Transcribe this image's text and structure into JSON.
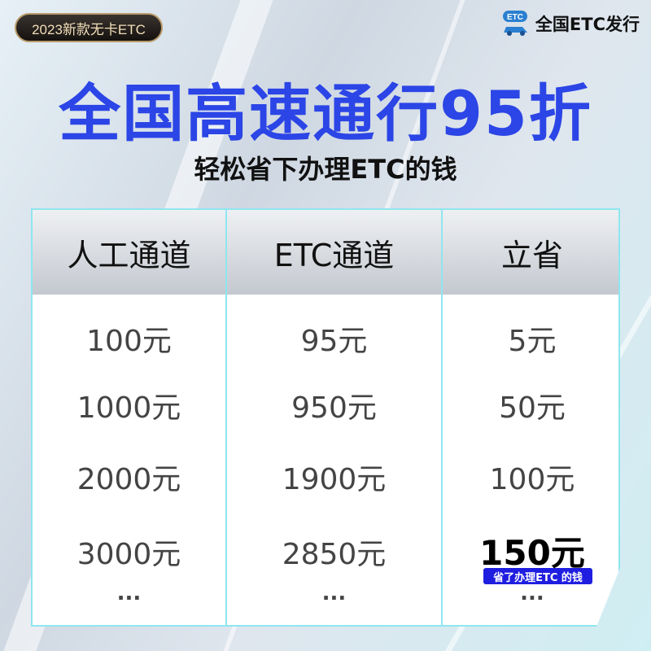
{
  "badge": "2023新款无卡ETC",
  "logo": {
    "text": "全国ETC发行",
    "mark": "ETC"
  },
  "title": "全国高速通行95折",
  "subtitle": "轻松省下办理ETC的钱",
  "colors": {
    "title": "#2b45e6",
    "note_bg": "#1f1ee0",
    "border": "#8fe6ef"
  },
  "table": {
    "headers": [
      "人工通道",
      "ETC通道",
      "立省"
    ],
    "columns": [
      [
        "100元",
        "1000元",
        "2000元",
        "3000元",
        "..."
      ],
      [
        "95元",
        "950元",
        "1900元",
        "2850元",
        "..."
      ],
      [
        "5元",
        "50元",
        "100元",
        "150元",
        "..."
      ]
    ],
    "highlight_note": "省了办理ETC 的钱"
  }
}
